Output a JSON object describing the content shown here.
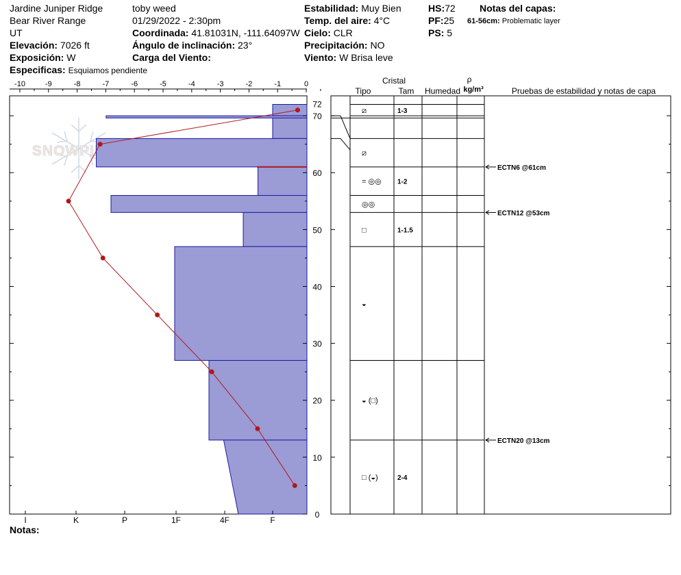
{
  "header": {
    "location": "Jardine Juniper Ridge",
    "range": "Bear River Range",
    "state": "UT",
    "elevation_label": "Elevación:",
    "elevation_value": "7026 ft",
    "aspect_label": "Exposición:",
    "aspect_value": "W",
    "specifics_label": "Especificas:",
    "specifics_value": "Esquiamos pendiente",
    "observer": "toby weed",
    "datetime": "01/29/2022 - 2:30pm",
    "coord_label": "Coordinada:",
    "coord_value": "41.81031N, -111.64097W",
    "slope_label": "Ángulo de inclinación:",
    "slope_value": "23°",
    "wind_load_label": "Carga del Viento:",
    "wind_load_value": "",
    "stability_label": "Estabilidad:",
    "stability_value": "Muy Bien",
    "airtemp_label": "Temp. del aire:",
    "airtemp_value": "4°C",
    "sky_label": "Cielo:",
    "sky_value": "CLR",
    "precip_label": "Precipitación:",
    "precip_value": "NO",
    "wind_label": "Viento:",
    "wind_value": "W Brisa leve",
    "hs_label": "HS:",
    "hs_value": "72",
    "pf_label": "PF:",
    "pf_value": "25",
    "ps_label": "PS:",
    "ps_value": "5",
    "layer_notes_title": "Notas del capas:",
    "layer_note_depth": "61-56cm:",
    "layer_note_text": "Problematic layer"
  },
  "notes_label": "Notas:",
  "watermark": "SNOWPILOT",
  "columns": {
    "crystal": "Cristal",
    "type": "Tipo",
    "size": "Tam",
    "moisture": "Humedad",
    "density_symbol": "ρ",
    "density_unit": "kg/m³",
    "tests": "Pruebas de estabilidad y notas de capa"
  },
  "colors": {
    "hardness_fill": "#9b9bd6",
    "hardness_stroke": "#1a1aa0",
    "temp_line": "#b01818",
    "weak_layer_line": "#b01818"
  },
  "chart_data": {
    "type": "snow-profile",
    "height_axis": {
      "label": "",
      "ticks": [
        0,
        10,
        20,
        30,
        40,
        50,
        60,
        70
      ],
      "top_label": 72,
      "range": [
        0,
        72
      ]
    },
    "temperature_axis": {
      "ticks": [
        -10,
        -9,
        -8,
        -7,
        -6,
        -5,
        -4,
        -3,
        -2,
        -1,
        0
      ],
      "range": [
        -10,
        0
      ]
    },
    "hardness_axis": {
      "ticks": [
        "I",
        "K",
        "P",
        "1F",
        "4F",
        "F"
      ]
    },
    "layers": [
      {
        "top": 72,
        "bottom": 70,
        "hardness": 0.7,
        "hardness_bottom": 0.7,
        "type": "⧄",
        "size": "1-3"
      },
      {
        "top": 70,
        "bottom": 69.6,
        "hardness": 4.1,
        "hardness_bottom": 4.1,
        "type": "",
        "size": ""
      },
      {
        "top": 69.6,
        "bottom": 66,
        "hardness": 0.7,
        "hardness_bottom": 0.7,
        "type": "",
        "size": ""
      },
      {
        "top": 66,
        "bottom": 61,
        "hardness": 4.3,
        "hardness_bottom": 4.3,
        "type": "⧄",
        "size": ""
      },
      {
        "top": 61,
        "bottom": 56,
        "hardness": 1.0,
        "hardness_bottom": 1.0,
        "type": "= ◎◎",
        "size": "1-2"
      },
      {
        "top": 56,
        "bottom": 53,
        "hardness": 4.0,
        "hardness_bottom": 4.0,
        "type": "◎◎",
        "size": ""
      },
      {
        "top": 53,
        "bottom": 47,
        "hardness": 1.3,
        "hardness_bottom": 1.3,
        "type": "□",
        "size": "1-1.5"
      },
      {
        "top": 47,
        "bottom": 27,
        "hardness": 2.7,
        "hardness_bottom": 2.7,
        "type": "◒",
        "size": ""
      },
      {
        "top": 27,
        "bottom": 13,
        "hardness": 2.0,
        "hardness_bottom": 2.0,
        "type": "◒ (□)",
        "size": ""
      },
      {
        "top": 13,
        "bottom": 0,
        "hardness": 1.7,
        "hardness_bottom": 1.4,
        "type": "□ (◒)",
        "size": "2-4"
      }
    ],
    "temperature_profile": [
      {
        "height": 71,
        "temp": -0.3
      },
      {
        "height": 65,
        "temp": -7.2
      },
      {
        "height": 55,
        "temp": -8.3
      },
      {
        "height": 45,
        "temp": -7.1
      },
      {
        "height": 35,
        "temp": -5.2
      },
      {
        "height": 25,
        "temp": -3.3
      },
      {
        "height": 15,
        "temp": -1.7
      },
      {
        "height": 5,
        "temp": -0.4
      }
    ],
    "weak_layer_height": 61,
    "stability_tests": [
      {
        "height": 61,
        "label": "ECTN6 @61cm"
      },
      {
        "height": 53,
        "label": "ECTN12 @53cm"
      },
      {
        "height": 13,
        "label": "ECTN20 @13cm"
      }
    ]
  }
}
